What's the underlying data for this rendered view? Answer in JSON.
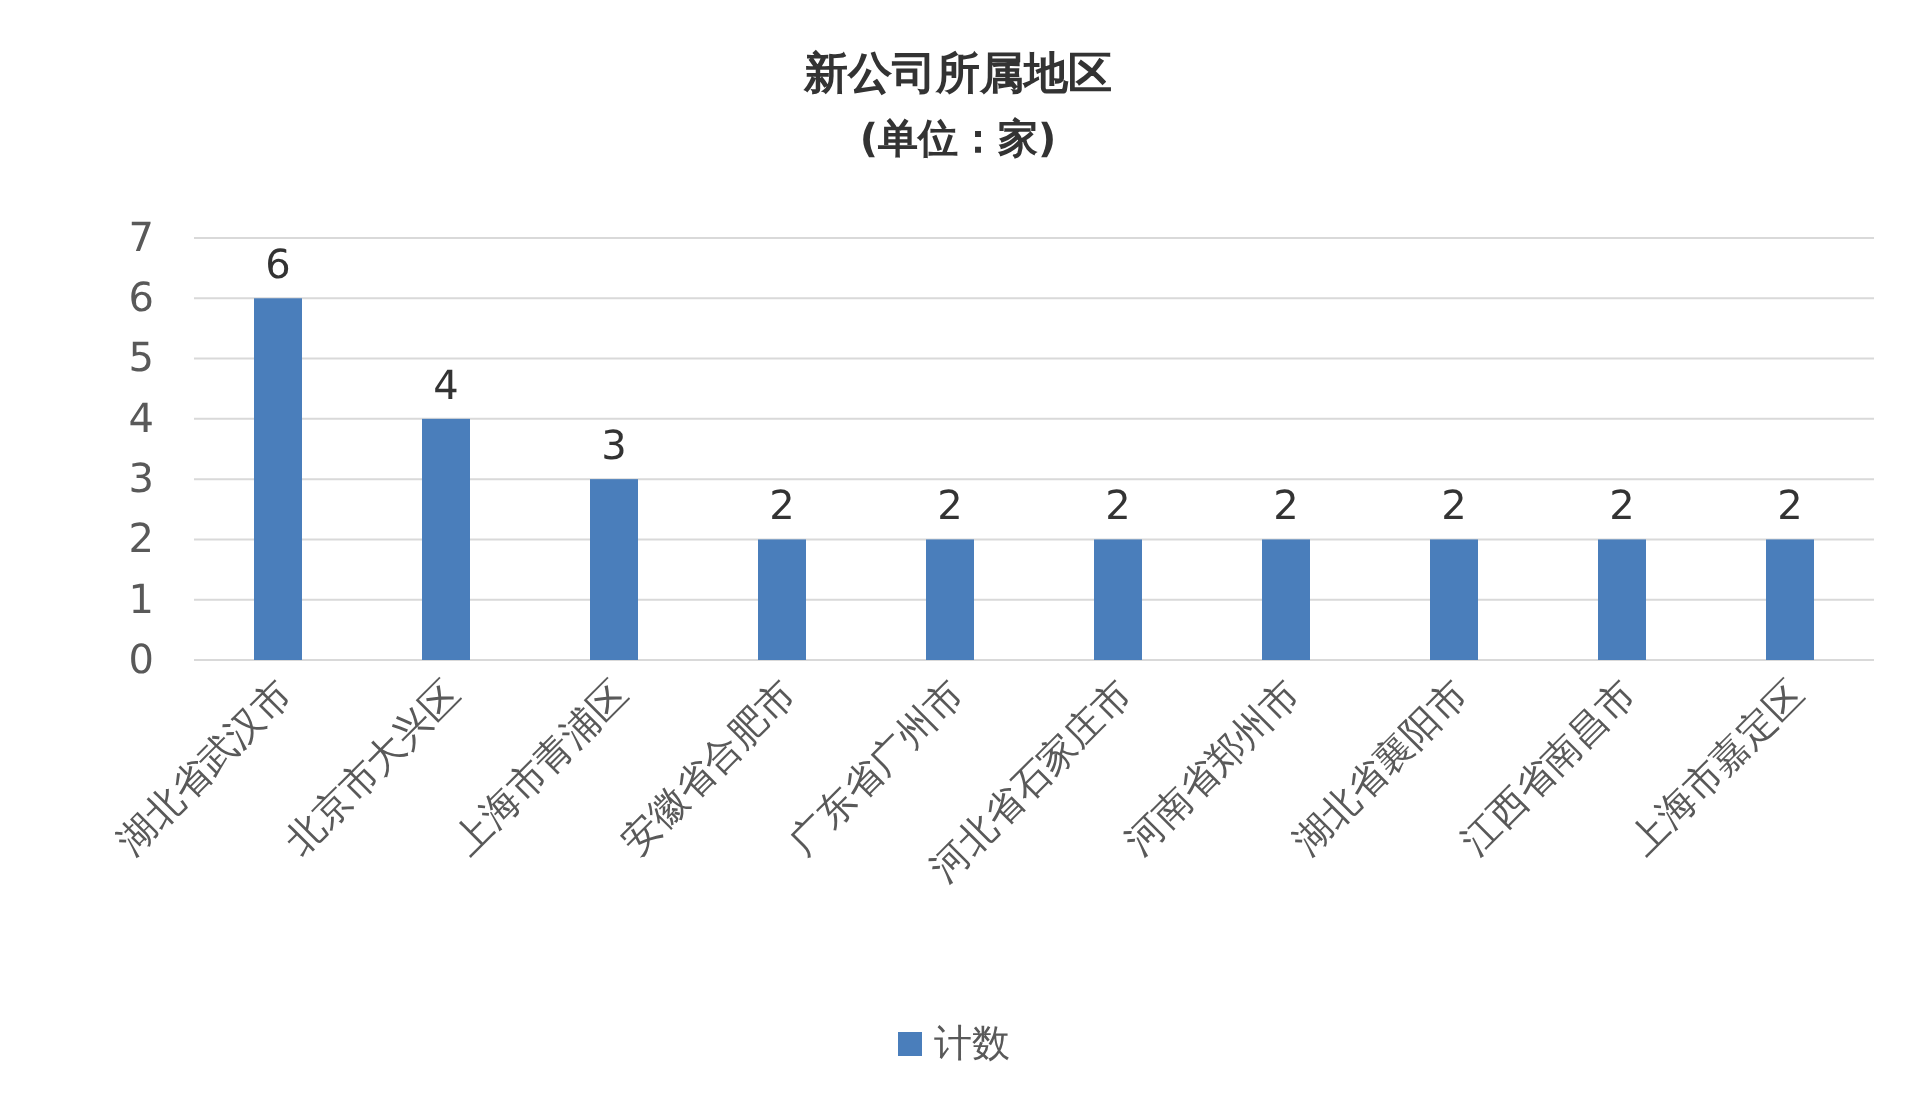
{
  "chart_data": {
    "type": "bar",
    "title": "新公司所属地区",
    "subtitle": "(单位：家)",
    "categories": [
      "湖北省武汉市",
      "北京市大兴区",
      "上海市青浦区",
      "安徽省合肥市",
      "广东省广州市",
      "河北省石家庄市",
      "河南省郑州市",
      "湖北省襄阳市",
      "江西省南昌市",
      "上海市嘉定区"
    ],
    "series": [
      {
        "name": "计数",
        "color": "#4a7ebb",
        "values": [
          6,
          4,
          3,
          2,
          2,
          2,
          2,
          2,
          2,
          2
        ]
      }
    ],
    "ylim": [
      0,
      7
    ],
    "yticks": [
      0,
      1,
      2,
      3,
      4,
      5,
      6,
      7
    ],
    "grid": "y",
    "legend": "bottom",
    "data_labels": true
  }
}
